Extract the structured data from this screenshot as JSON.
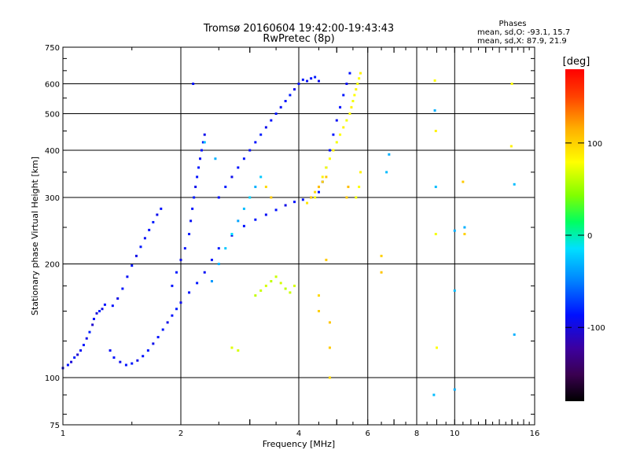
{
  "chart_data": {
    "type": "scatter",
    "title": "Tromsø 20160604 19:42:00-19:43:43",
    "subtitle": "RwPretec (8p)",
    "xlabel": "Frequency [MHz]",
    "ylabel": "Stationary phase Virtual Height [km]",
    "x_scale": "log",
    "y_scale": "log",
    "xlim": [
      1,
      16
    ],
    "ylim": [
      75,
      750
    ],
    "x_ticks": [
      1,
      2,
      4,
      6,
      8,
      10,
      16
    ],
    "y_ticks": [
      75,
      100,
      200,
      300,
      400,
      500,
      600,
      750
    ],
    "x_tick_labels": [
      "1",
      "2",
      "4",
      "6",
      "8",
      "10",
      "16"
    ],
    "y_tick_labels": [
      "75",
      "100",
      "200",
      "300",
      "400",
      "500",
      "600",
      "750"
    ],
    "grid": true,
    "stats": {
      "heading": "Phases",
      "line1": "mean, sd,O: -93.1, 15.7",
      "line2": "mean, sd,X:  87.9, 21.9"
    },
    "colorbar": {
      "label": "[deg]",
      "range": [
        -180,
        180
      ],
      "ticks": [
        -100,
        0,
        100
      ],
      "tick_labels": [
        "-100",
        "0",
        "100"
      ]
    },
    "series": [
      {
        "points": [
          [
            1.0,
            106,
            -105
          ],
          [
            1.03,
            108,
            -100
          ],
          [
            1.05,
            110,
            -108
          ],
          [
            1.07,
            113,
            -95
          ],
          [
            1.09,
            115,
            -110
          ],
          [
            1.11,
            118,
            -102
          ],
          [
            1.13,
            122,
            -98
          ],
          [
            1.15,
            127,
            -105
          ],
          [
            1.17,
            132,
            -95
          ],
          [
            1.19,
            138,
            -110
          ],
          [
            1.2,
            143,
            -100
          ],
          [
            1.22,
            148,
            -108
          ],
          [
            1.24,
            150,
            -95
          ],
          [
            1.26,
            152,
            -105
          ],
          [
            1.28,
            156,
            -100
          ],
          [
            1.32,
            118,
            -102
          ],
          [
            1.35,
            113,
            -99
          ],
          [
            1.4,
            110,
            -104
          ],
          [
            1.45,
            108,
            -100
          ],
          [
            1.5,
            109,
            -98
          ],
          [
            1.55,
            111,
            -105
          ],
          [
            1.6,
            114,
            -100
          ],
          [
            1.65,
            118,
            -96
          ],
          [
            1.7,
            123,
            -104
          ],
          [
            1.75,
            128,
            -100
          ],
          [
            1.8,
            134,
            -98
          ],
          [
            1.85,
            140,
            -105
          ],
          [
            1.9,
            146,
            -100
          ],
          [
            1.95,
            152,
            -95
          ],
          [
            2.0,
            158,
            -104
          ],
          [
            2.1,
            168,
            -100
          ],
          [
            2.2,
            178,
            -98
          ],
          [
            2.3,
            190,
            -102
          ],
          [
            2.4,
            205,
            -100
          ],
          [
            2.5,
            220,
            -96
          ],
          [
            2.7,
            238,
            -104
          ],
          [
            2.9,
            252,
            -100
          ],
          [
            3.1,
            262,
            -98
          ],
          [
            3.3,
            270,
            -102
          ],
          [
            3.5,
            278,
            -100
          ],
          [
            3.7,
            286,
            -105
          ],
          [
            3.9,
            292,
            -100
          ],
          [
            4.1,
            296,
            -98
          ],
          [
            4.3,
            300,
            -102
          ],
          [
            4.5,
            310,
            -100
          ],
          [
            4.6,
            330,
            -96
          ],
          [
            4.7,
            360,
            -104
          ],
          [
            4.8,
            400,
            -100
          ],
          [
            4.9,
            440,
            -98
          ],
          [
            5.0,
            480,
            -102
          ],
          [
            5.1,
            520,
            -100
          ],
          [
            5.2,
            560,
            -98
          ],
          [
            5.3,
            600,
            -102
          ],
          [
            5.4,
            640,
            -100
          ],
          [
            1.34,
            155,
            -100
          ],
          [
            1.38,
            162,
            -105
          ],
          [
            1.42,
            172,
            -98
          ],
          [
            1.46,
            185,
            -102
          ],
          [
            1.5,
            198,
            -100
          ],
          [
            1.54,
            210,
            -105
          ],
          [
            1.58,
            222,
            -98
          ],
          [
            1.62,
            234,
            -102
          ],
          [
            1.66,
            246,
            -100
          ],
          [
            1.7,
            258,
            -96
          ],
          [
            1.74,
            270,
            -104
          ],
          [
            1.78,
            280,
            -100
          ],
          [
            1.9,
            175,
            -100
          ],
          [
            1.95,
            190,
            -96
          ],
          [
            2.0,
            205,
            -104
          ],
          [
            2.05,
            220,
            -100
          ],
          [
            2.1,
            240,
            -98
          ],
          [
            2.12,
            260,
            -102
          ],
          [
            2.14,
            280,
            -100
          ],
          [
            2.16,
            300,
            -96
          ],
          [
            2.18,
            320,
            -104
          ],
          [
            2.2,
            340,
            -100
          ],
          [
            2.22,
            360,
            -98
          ],
          [
            2.24,
            380,
            -102
          ],
          [
            2.26,
            400,
            -100
          ],
          [
            2.28,
            420,
            -96
          ],
          [
            2.3,
            440,
            -104
          ],
          [
            2.15,
            600,
            -100
          ],
          [
            2.5,
            300,
            -100
          ],
          [
            2.6,
            320,
            -96
          ],
          [
            2.7,
            340,
            -104
          ],
          [
            2.8,
            360,
            -100
          ],
          [
            2.9,
            380,
            -98
          ],
          [
            3.0,
            400,
            -102
          ],
          [
            3.1,
            420,
            -100
          ],
          [
            3.2,
            440,
            -96
          ],
          [
            3.3,
            460,
            -104
          ],
          [
            3.4,
            480,
            -100
          ],
          [
            3.5,
            500,
            -98
          ],
          [
            3.6,
            520,
            -102
          ],
          [
            3.7,
            540,
            -100
          ],
          [
            3.8,
            560,
            -96
          ],
          [
            3.9,
            580,
            -104
          ],
          [
            4.0,
            600,
            -100
          ],
          [
            4.1,
            615,
            -98
          ],
          [
            4.2,
            610,
            -102
          ],
          [
            4.3,
            620,
            -100
          ],
          [
            4.4,
            625,
            -96
          ],
          [
            4.5,
            610,
            -104
          ]
        ]
      },
      {
        "points": [
          [
            2.4,
            180,
            -50
          ],
          [
            2.5,
            200,
            -40
          ],
          [
            2.6,
            220,
            -30
          ],
          [
            2.7,
            240,
            -20
          ],
          [
            2.8,
            260,
            -45
          ],
          [
            2.9,
            280,
            -35
          ],
          [
            3.0,
            300,
            -25
          ],
          [
            3.1,
            320,
            -40
          ],
          [
            3.2,
            340,
            -30
          ],
          [
            2.3,
            420,
            -35
          ],
          [
            2.45,
            380,
            -40
          ]
        ]
      },
      {
        "points": [
          [
            3.1,
            165,
            70
          ],
          [
            3.2,
            170,
            75
          ],
          [
            3.3,
            175,
            80
          ],
          [
            3.4,
            180,
            70
          ],
          [
            3.5,
            185,
            75
          ],
          [
            3.6,
            178,
            80
          ],
          [
            3.7,
            172,
            70
          ],
          [
            3.8,
            168,
            75
          ],
          [
            3.9,
            175,
            80
          ],
          [
            2.7,
            120,
            85
          ],
          [
            2.8,
            118,
            80
          ],
          [
            4.4,
            300,
            95
          ],
          [
            4.5,
            320,
            100
          ],
          [
            4.6,
            340,
            105
          ],
          [
            4.7,
            360,
            95
          ],
          [
            4.8,
            380,
            100
          ],
          [
            4.9,
            400,
            105
          ],
          [
            5.0,
            420,
            95
          ],
          [
            5.1,
            440,
            100
          ],
          [
            5.2,
            460,
            105
          ],
          [
            5.3,
            480,
            95
          ],
          [
            5.4,
            500,
            100
          ],
          [
            5.45,
            520,
            105
          ],
          [
            5.5,
            540,
            95
          ],
          [
            5.55,
            560,
            100
          ],
          [
            5.6,
            580,
            105
          ],
          [
            5.65,
            600,
            95
          ],
          [
            5.7,
            620,
            100
          ],
          [
            5.75,
            640,
            105
          ],
          [
            5.6,
            300,
            95
          ],
          [
            5.7,
            320,
            100
          ],
          [
            5.75,
            350,
            105
          ],
          [
            8.9,
            612,
            100
          ],
          [
            8.95,
            450,
            105
          ],
          [
            8.95,
            240,
            95
          ],
          [
            9.0,
            120,
            100
          ],
          [
            13.95,
            410,
            105
          ],
          [
            14.0,
            600,
            100
          ]
        ]
      },
      {
        "points": [
          [
            4.2,
            290,
            110
          ],
          [
            4.3,
            300,
            120
          ],
          [
            4.4,
            310,
            115
          ],
          [
            4.5,
            320,
            125
          ],
          [
            4.6,
            330,
            118
          ],
          [
            4.7,
            340,
            122
          ],
          [
            4.7,
            205,
            120
          ],
          [
            4.5,
            165,
            115
          ],
          [
            4.5,
            150,
            118
          ],
          [
            4.8,
            140,
            122
          ],
          [
            4.8,
            120,
            120
          ],
          [
            4.8,
            100,
            115
          ],
          [
            5.3,
            300,
            120
          ],
          [
            5.35,
            320,
            125
          ],
          [
            6.5,
            210,
            118
          ],
          [
            6.5,
            190,
            122
          ],
          [
            10.5,
            330,
            120
          ],
          [
            10.6,
            240,
            118
          ],
          [
            3.3,
            320,
            115
          ],
          [
            3.4,
            300,
            120
          ]
        ]
      },
      {
        "points": [
          [
            6.8,
            390,
            -40
          ],
          [
            6.7,
            350,
            -35
          ],
          [
            8.9,
            510,
            -40
          ],
          [
            8.95,
            320,
            -35
          ],
          [
            10.0,
            245,
            -40
          ],
          [
            10.0,
            170,
            -35
          ],
          [
            10.0,
            93,
            -40
          ],
          [
            14.2,
            325,
            -35
          ],
          [
            14.2,
            130,
            -40
          ],
          [
            8.85,
            90,
            -35
          ],
          [
            10.6,
            250,
            -40
          ]
        ]
      }
    ]
  }
}
